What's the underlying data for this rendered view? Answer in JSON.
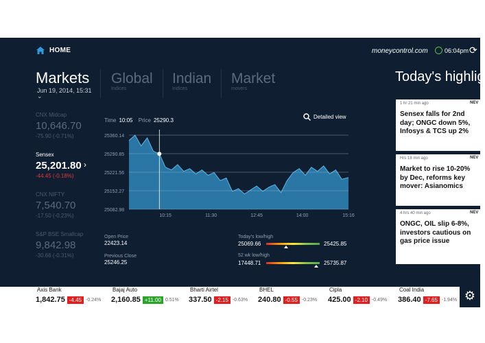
{
  "topbar": {
    "home_label": "HOME",
    "brand": "moneycontrol.com",
    "time": "06:04pm",
    "refresh_icon": "refresh-icon",
    "home_icon": "home-icon"
  },
  "tabs": {
    "markets": "Markets",
    "date": "Jun 19, 2014,  15:31",
    "chevron": "⌄",
    "items": [
      {
        "label": "Global",
        "sub": "Indices"
      },
      {
        "label": "Indian",
        "sub": "Indices"
      },
      {
        "label": "Market",
        "sub": "movers"
      }
    ]
  },
  "indices": [
    {
      "name": "CNX Midcap",
      "value": "10,646.70",
      "change": "-75.90 (-0.71%)"
    },
    {
      "name": "Sensex",
      "value": "25,201.80",
      "change": "-44.45 (-0.18%)",
      "arrow": "›"
    },
    {
      "name": "CNX NIFTY",
      "value": "7,540.70",
      "change": "-17.50 (-0.23%)"
    },
    {
      "name": "S&P BSE Smallcap",
      "value": "9,842.98",
      "change": "-30.66 (-0.31%)"
    }
  ],
  "chart": {
    "time_label": "Time",
    "time_value": "10:05",
    "price_label": "Price",
    "price_value": "25290.3",
    "detailed_view": "Detailed view",
    "fill_color": "#2f86b8",
    "line_color": "#5bb8e8"
  },
  "chart_data": {
    "type": "area",
    "y_ticks": [
      "25360.14",
      "25290.85",
      "25221.56",
      "25152.27",
      "25082.98"
    ],
    "x_ticks": [
      "10:15",
      "11:30",
      "12:45",
      "14:00",
      "15:16"
    ],
    "ylim": [
      25082.98,
      25360.14
    ],
    "points": [
      [
        "09:15",
        25340
      ],
      [
        "09:25",
        25360
      ],
      [
        "09:35",
        25320
      ],
      [
        "09:45",
        25350
      ],
      [
        "09:55",
        25300
      ],
      [
        "10:05",
        25290.3
      ],
      [
        "10:15",
        25240
      ],
      [
        "10:25",
        25230
      ],
      [
        "10:35",
        25250
      ],
      [
        "10:45",
        25225
      ],
      [
        "10:55",
        25235
      ],
      [
        "11:05",
        25215
      ],
      [
        "11:15",
        25230
      ],
      [
        "11:25",
        25210
      ],
      [
        "11:35",
        25220
      ],
      [
        "11:45",
        25190
      ],
      [
        "11:55",
        25200
      ],
      [
        "12:05",
        25150
      ],
      [
        "12:15",
        25160
      ],
      [
        "12:25",
        25140
      ],
      [
        "12:35",
        25155
      ],
      [
        "12:45",
        25170
      ],
      [
        "12:55",
        25150
      ],
      [
        "13:05",
        25165
      ],
      [
        "13:15",
        25175
      ],
      [
        "13:25",
        25145
      ],
      [
        "13:35",
        25190
      ],
      [
        "13:45",
        25220
      ],
      [
        "13:55",
        25235
      ],
      [
        "14:05",
        25210
      ],
      [
        "14:15",
        25240
      ],
      [
        "14:25",
        25225
      ],
      [
        "14:35",
        25245
      ],
      [
        "14:45",
        25215
      ],
      [
        "14:55",
        25230
      ],
      [
        "15:05",
        25195
      ],
      [
        "15:16",
        25201.8
      ]
    ],
    "marker": {
      "x": "10:05",
      "y": 25290.3
    }
  },
  "stats": {
    "open_label": "Open Price",
    "open_value": "22423.14",
    "prev_label": "Previous Close",
    "prev_value": "25246.25",
    "today_label": "Today's low/high",
    "today_low": "25069.66",
    "today_high": "25425.85",
    "today_pos": 0.37,
    "wk_label": "52 wk low/high",
    "wk_low": "17448.71",
    "wk_high": "25735.87",
    "wk_pos": 0.93
  },
  "highlights": {
    "title": "Today's highlig",
    "items": [
      {
        "age": "1 hr 21 min ago",
        "tag": "NEV",
        "headline": "Sensex falls for 2nd day; ONGC down 5%, Infosys & TCS up 2%"
      },
      {
        "age": "Hrs 18 min ago",
        "tag": "NEV",
        "headline": "Market to rise 10-20% by Dec, reforms key mover: Asianomics"
      },
      {
        "age": "4 hrs 40 min ago",
        "tag": "NEV",
        "headline": "ONGC, OIL slip 6-8%, investors cautious on gas price issue"
      }
    ]
  },
  "ticker": [
    {
      "name": "Axis Bank",
      "price": "1,842.75",
      "change": "-4.45",
      "pct": "-0.24%",
      "color": "#e02020"
    },
    {
      "name": "Bajaj Auto",
      "price": "2,160.85",
      "change": "+11.00",
      "pct": "0.51%",
      "color": "#2aa52a"
    },
    {
      "name": "Bharti Airtel",
      "price": "337.50",
      "change": "-2.15",
      "pct": "-0.63%",
      "color": "#e02020"
    },
    {
      "name": "BHEL",
      "price": "240.80",
      "change": "-0.55",
      "pct": "-0.23%",
      "color": "#e02020"
    },
    {
      "name": "Cipla",
      "price": "425.00",
      "change": "-2.10",
      "pct": "-0.49%",
      "color": "#e02020"
    },
    {
      "name": "Coal India",
      "price": "386.40",
      "change": "-7.65",
      "pct": "-1.94%",
      "color": "#e02020"
    }
  ]
}
